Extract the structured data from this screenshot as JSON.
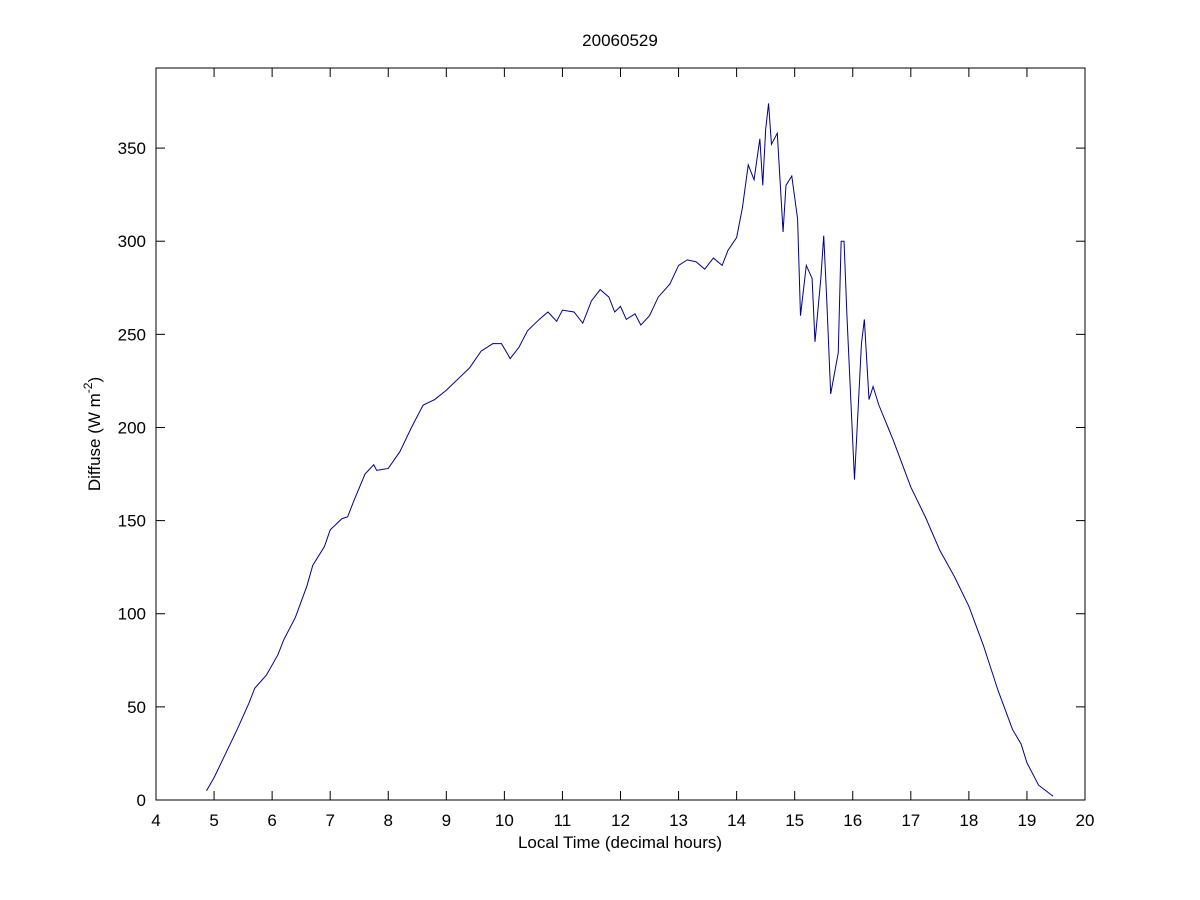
{
  "chart_data": {
    "type": "line",
    "title": "20060529",
    "xlabel": "Local Time (decimal hours)",
    "ylabel": [
      "Diffuse (W m",
      "-2",
      ")"
    ],
    "color": "#00008b",
    "xlim": [
      4,
      20
    ],
    "xticks": [
      4,
      5,
      6,
      7,
      8,
      9,
      10,
      11,
      12,
      13,
      14,
      15,
      16,
      17,
      18,
      19,
      20
    ],
    "ylim": [
      0,
      393
    ],
    "yticks": [
      0,
      50,
      100,
      150,
      200,
      250,
      300,
      350
    ],
    "x": [
      4.87,
      5.0,
      5.2,
      5.4,
      5.6,
      5.7,
      5.9,
      6.1,
      6.2,
      6.4,
      6.6,
      6.7,
      6.9,
      7.0,
      7.2,
      7.3,
      7.4,
      7.6,
      7.75,
      7.8,
      8.0,
      8.2,
      8.4,
      8.6,
      8.8,
      9.0,
      9.2,
      9.4,
      9.6,
      9.8,
      9.95,
      10.1,
      10.25,
      10.4,
      10.6,
      10.75,
      10.9,
      11.0,
      11.2,
      11.35,
      11.5,
      11.65,
      11.8,
      11.9,
      12.0,
      12.1,
      12.25,
      12.35,
      12.5,
      12.65,
      12.85,
      13.0,
      13.15,
      13.3,
      13.45,
      13.6,
      13.75,
      13.85,
      14.0,
      14.1,
      14.2,
      14.3,
      14.4,
      14.45,
      14.5,
      14.55,
      14.6,
      14.7,
      14.8,
      14.85,
      14.95,
      15.05,
      15.1,
      15.2,
      15.3,
      15.35,
      15.45,
      15.5,
      15.55,
      15.62,
      15.75,
      15.8,
      15.85,
      15.9,
      16.03,
      16.15,
      16.2,
      16.28,
      16.35,
      16.45,
      16.7,
      17.0,
      17.25,
      17.5,
      17.75,
      18.0,
      18.25,
      18.5,
      18.75,
      18.9,
      19.0,
      19.2,
      19.45
    ],
    "values": [
      5,
      12,
      25,
      38,
      52,
      60,
      67,
      78,
      86,
      98,
      115,
      126,
      136,
      145,
      151,
      152,
      160,
      175,
      180,
      177,
      178,
      187,
      200,
      212,
      215,
      220,
      226,
      232,
      241,
      245,
      245,
      237,
      243,
      252,
      258,
      262,
      257,
      263,
      262,
      256,
      268,
      274,
      270,
      262,
      265,
      258,
      261,
      255,
      260,
      270,
      277,
      287,
      290,
      289,
      285,
      291,
      287,
      295,
      302,
      318,
      341,
      333,
      355,
      330,
      360,
      374,
      352,
      358,
      305,
      330,
      335,
      312,
      260,
      287,
      280,
      246,
      280,
      303,
      270,
      218,
      240,
      300,
      300,
      260,
      172,
      245,
      258,
      215,
      222,
      212,
      193,
      168,
      152,
      134,
      120,
      104,
      83,
      59,
      38,
      30,
      20,
      8,
      2
    ]
  }
}
